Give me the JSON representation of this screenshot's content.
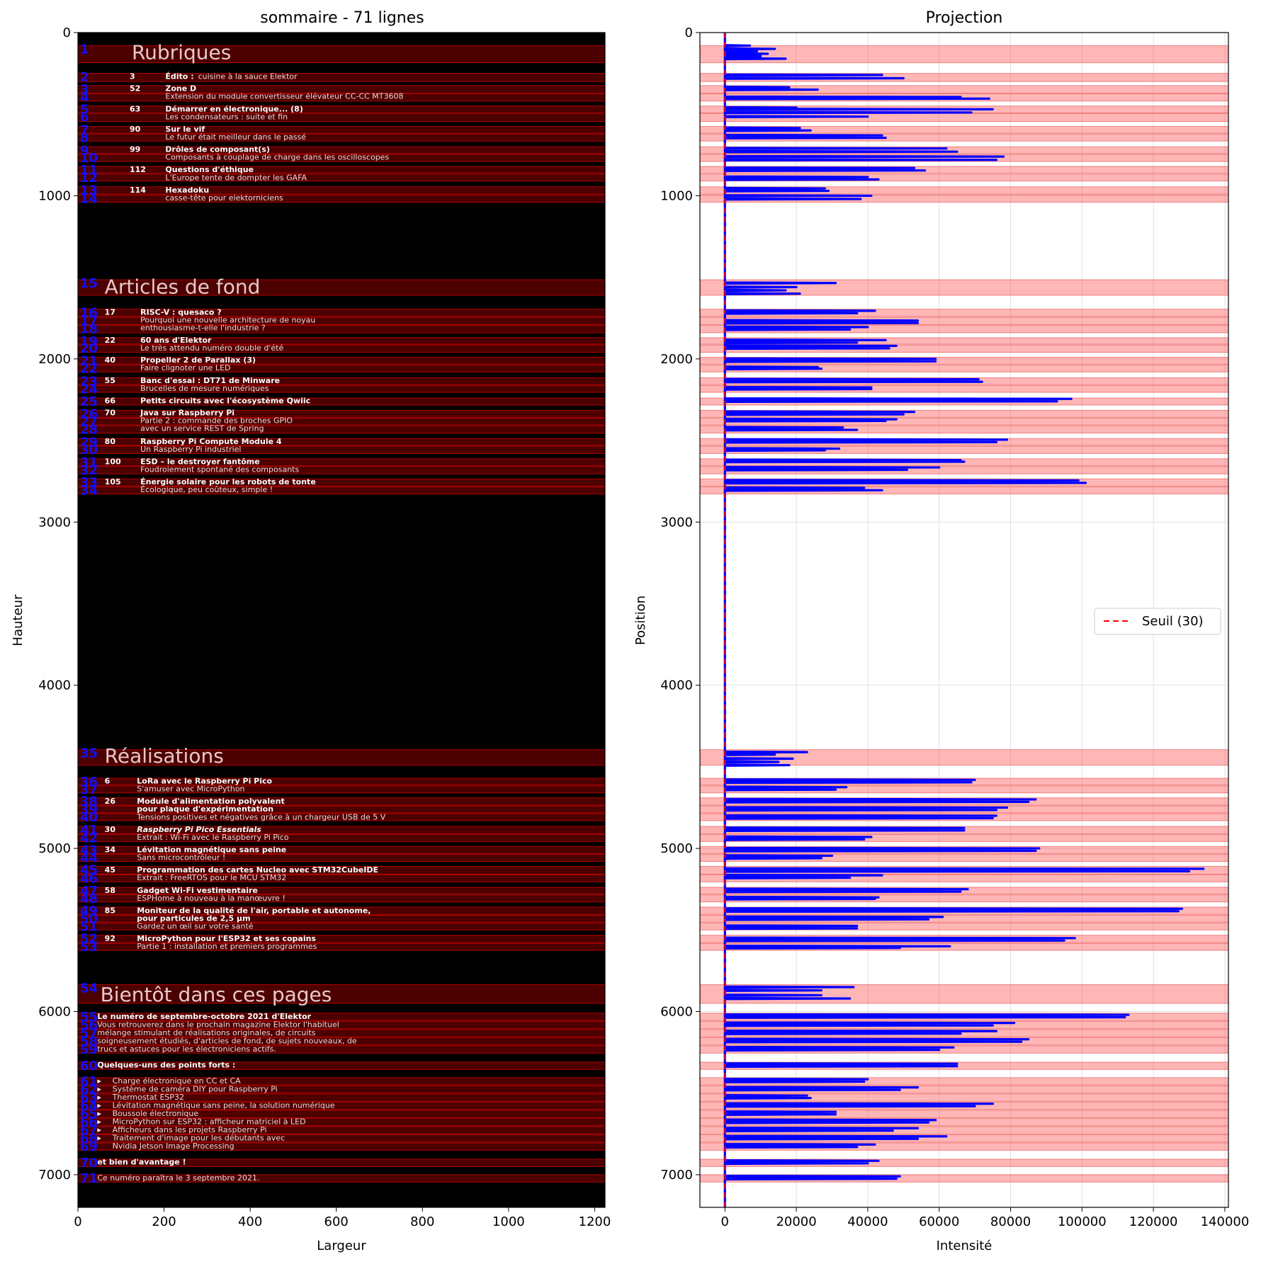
{
  "chart_data": [
    {
      "type": "image-with-line-segmentation",
      "title": "sommaire - 71 lignes",
      "xlabel": "Largeur",
      "ylabel": "Hauteur",
      "xlim": [
        0,
        1224
      ],
      "ylim": [
        7200,
        0
      ],
      "xticks": [
        0,
        200,
        400,
        600,
        800,
        1000,
        1200
      ],
      "yticks": [
        0,
        1000,
        2000,
        3000,
        4000,
        5000,
        6000,
        7000
      ],
      "n_lines": 71,
      "headings": [
        {
          "text": "Rubriques",
          "y": 128
        },
        {
          "text": "Articles de fond",
          "y": 1565
        },
        {
          "text": "Réalisations",
          "y": 4440
        },
        {
          "text": "Bientôt dans ces pages",
          "y": 5903
        }
      ],
      "entries": [
        {
          "page": "3",
          "title": "Édito :",
          "subtitle_inline": "cuisine à la sauce Elektor",
          "y": 272
        },
        {
          "page": "52",
          "title": "Zone D",
          "subtitle": "Extension du module convertisseur élévateur CC-CC MT3608",
          "y": 345
        },
        {
          "page": "63",
          "title": "Démarrer en électronique... (8)",
          "subtitle": "Les condensateurs : suite et fin",
          "y": 470
        },
        {
          "page": "90",
          "title": "Sur le vif",
          "subtitle": "Le futur était meilleur dans le passé",
          "y": 595
        },
        {
          "page": "99",
          "title": "Drôles de composant(s)",
          "subtitle": "Composants à couplage de charge dans les oscilloscopes",
          "y": 718
        },
        {
          "page": "112",
          "title": "Questions d'éthique",
          "subtitle": "L'Europe tente de dompter les GAFA",
          "y": 843
        },
        {
          "page": "114",
          "title": "Hexadoku",
          "subtitle": "casse-tête pour elektorniciens",
          "y": 968
        },
        {
          "page": "17",
          "title": "RISC-V : quesaco ?",
          "subtitle": "Pourquoi une nouvelle architecture de noyau",
          "subtitle2": "enthousiasme-t-elle l'industrie ?",
          "y": 1717
        },
        {
          "page": "22",
          "title": "60 ans d'Elektor",
          "subtitle": "Le très attendu numéro double d'été",
          "y": 1887
        },
        {
          "page": "40",
          "title": "Propeller 2 de Parallax (3)",
          "subtitle": "Faire clignoter une LED",
          "y": 2010
        },
        {
          "page": "55",
          "title": "Banc d'essai : DT71 de Minware",
          "subtitle": "Brucelles de mesure numériques",
          "y": 2135
        },
        {
          "page": "66",
          "title": "Petits circuits avec l'écosystème Qwiic",
          "y": 2260
        },
        {
          "page": "70",
          "title": "Java sur Raspberry Pi",
          "subtitle": "Partie 2 : commande des broches GPIO",
          "subtitle2": "avec un service REST de Spring",
          "y": 2333
        },
        {
          "page": "80",
          "title": "Raspberry Pi Compute Module 4",
          "subtitle": "Un Raspberry Pi industriel",
          "y": 2508
        },
        {
          "page": "100",
          "title": "ESD – le destroyer fantôme",
          "subtitle": "Foudroiement spontané des composants",
          "y": 2632
        },
        {
          "page": "105",
          "title": "Énergie solaire pour les robots de tonte",
          "subtitle": "Écologique, peu coûteux, simple !",
          "y": 2756
        },
        {
          "page": "6",
          "title": "LoRa avec le Raspberry Pi Pico",
          "subtitle": "S'amuser avec MicroPython",
          "y": 4590
        },
        {
          "page": "26",
          "title": "Module d'alimentation polyvalent",
          "title2": "pour plaque d'expérimentation",
          "subtitle": "Tensions positives et négatives grâce à un chargeur USB de 5 V",
          "y": 4714
        },
        {
          "page": "30",
          "title": "Raspberry Pi Pico Essentials",
          "italic": true,
          "subtitle": "Extrait : Wi-Fi avec le Raspberry Pi Pico",
          "y": 4887
        },
        {
          "page": "34",
          "title": "Lévitation magnétique sans peine",
          "subtitle": "Sans microcontrôleur !",
          "y": 5010
        },
        {
          "page": "45",
          "title": "Programmation des cartes Nucleo avec STM32CubeIDE",
          "subtitle": "Extrait : FreeRTOS pour le MCU STM32",
          "y": 5135
        },
        {
          "page": "58",
          "title": "Gadget Wi-Fi vestimentaire",
          "subtitle": "ESPHome à nouveau à la manœuvre !",
          "y": 5260
        },
        {
          "page": "85",
          "title": "Moniteur de la qualité de l'air, portable et autonome,",
          "title2": "pour particules de 2,5 µm",
          "subtitle": "Gardez un œil sur votre santé",
          "y": 5383
        },
        {
          "page": "92",
          "title": "MicroPython pour l'ESP32 et ses copains",
          "subtitle": "Partie 1 : installation et premiers programmes",
          "y": 5555
        }
      ],
      "preview": {
        "headline": {
          "text": "Le numéro de septembre-octobre 2021 d'Elektor",
          "y": 6032
        },
        "paragraph": [
          {
            "text": "Vous retrouverez dans le prochain magazine Elektor l'habituel",
            "y": 6082
          },
          {
            "text": "mélange stimulant de réalisations originales, de circuits",
            "y": 6132
          },
          {
            "text": "soigneusement étudiés, d'articles de fond, de sujets nouveaux, de",
            "y": 6182
          },
          {
            "text": "trucs et astuces pour les électroniciens actifs.",
            "y": 6232
          }
        ],
        "points_title": {
          "text": "Quelques-uns des points forts :",
          "y": 6330
        },
        "bullets": [
          {
            "text": "Charge électronique en CC et CA",
            "y": 6427
          },
          {
            "text": "Système de caméra DIY pour Raspberry Pi",
            "y": 6477
          },
          {
            "text": "Thermostat ESP32",
            "y": 6527
          },
          {
            "text": "Lévitation magnétique sans peine, la solution numérique",
            "y": 6577
          },
          {
            "text": "Boussole électronique",
            "y": 6627
          },
          {
            "text": "MicroPython sur ESP32 : afficheur matriciel à LED",
            "y": 6677
          },
          {
            "text": "Afficheurs dans les projets Raspberry Pi",
            "y": 6727
          },
          {
            "text": "Traitement d'image pour les débutants avec",
            "y": 6777
          },
          {
            "text": "Nvidia Jetson Image Processing",
            "y": 6827,
            "no_bullet": true
          }
        ],
        "more": {
          "text": "et bien d'avantage !",
          "y": 6925
        },
        "date": {
          "text": "Ce numéro paraîtra le 3 septembre 2021.",
          "y": 7022
        }
      },
      "line_bands": [
        [
          80,
          185
        ],
        [
          250,
          300
        ],
        [
          325,
          372
        ],
        [
          375,
          420
        ],
        [
          450,
          493
        ],
        [
          495,
          545
        ],
        [
          575,
          617
        ],
        [
          622,
          665
        ],
        [
          700,
          742
        ],
        [
          747,
          790
        ],
        [
          820,
          862
        ],
        [
          868,
          910
        ],
        [
          945,
          990
        ],
        [
          995,
          1040
        ],
        [
          1515,
          1610
        ],
        [
          1695,
          1740
        ],
        [
          1745,
          1790
        ],
        [
          1795,
          1840
        ],
        [
          1870,
          1910
        ],
        [
          1915,
          1960
        ],
        [
          1990,
          2032
        ],
        [
          2037,
          2080
        ],
        [
          2115,
          2158
        ],
        [
          2163,
          2205
        ],
        [
          2240,
          2283
        ],
        [
          2315,
          2358
        ],
        [
          2363,
          2405
        ],
        [
          2410,
          2455
        ],
        [
          2488,
          2530
        ],
        [
          2535,
          2580
        ],
        [
          2612,
          2655
        ],
        [
          2660,
          2705
        ],
        [
          2735,
          2780
        ],
        [
          2785,
          2828
        ],
        [
          4395,
          4490
        ],
        [
          4570,
          4612
        ],
        [
          4617,
          4660
        ],
        [
          4690,
          4735
        ],
        [
          4740,
          4782
        ],
        [
          4787,
          4830
        ],
        [
          4865,
          4910
        ],
        [
          4915,
          4958
        ],
        [
          4988,
          5032
        ],
        [
          5037,
          5080
        ],
        [
          5110,
          5158
        ],
        [
          5162,
          5205
        ],
        [
          5238,
          5280
        ],
        [
          5285,
          5328
        ],
        [
          5360,
          5405
        ],
        [
          5410,
          5452
        ],
        [
          5457,
          5500
        ],
        [
          5532,
          5578
        ],
        [
          5582,
          5625
        ],
        [
          5835,
          5950
        ],
        [
          6010,
          6055
        ],
        [
          6060,
          6105
        ],
        [
          6110,
          6155
        ],
        [
          6160,
          6205
        ],
        [
          6210,
          6255
        ],
        [
          6310,
          6355
        ],
        [
          6405,
          6450
        ],
        [
          6455,
          6500
        ],
        [
          6505,
          6550
        ],
        [
          6555,
          6600
        ],
        [
          6605,
          6650
        ],
        [
          6655,
          6700
        ],
        [
          6705,
          6750
        ],
        [
          6755,
          6800
        ],
        [
          6805,
          6850
        ],
        [
          6905,
          6950
        ],
        [
          7000,
          7045
        ]
      ]
    },
    {
      "type": "line",
      "title": "Projection",
      "xlabel": "Intensité",
      "ylabel": "Position",
      "xlim": [
        -7000,
        141000
      ],
      "ylim": [
        7200,
        0
      ],
      "xticks": [
        0,
        20000,
        40000,
        60000,
        80000,
        100000,
        120000,
        140000
      ],
      "yticks": [
        0,
        1000,
        2000,
        3000,
        4000,
        5000,
        6000,
        7000
      ],
      "grid": true,
      "threshold": 30,
      "legend": {
        "label": "Seuil (30)",
        "placement": "center-right"
      },
      "profile_peaks": [
        [
          80,
          7000
        ],
        [
          100,
          14000
        ],
        [
          115,
          9000
        ],
        [
          130,
          12000
        ],
        [
          145,
          10000
        ],
        [
          160,
          17000
        ],
        [
          260,
          44000
        ],
        [
          280,
          50000
        ],
        [
          335,
          18000
        ],
        [
          350,
          26000
        ],
        [
          395,
          66000
        ],
        [
          405,
          74000
        ],
        [
          460,
          20000
        ],
        [
          470,
          75000
        ],
        [
          490,
          69000
        ],
        [
          515,
          40000
        ],
        [
          585,
          21000
        ],
        [
          600,
          24000
        ],
        [
          630,
          44000
        ],
        [
          645,
          45000
        ],
        [
          710,
          62000
        ],
        [
          730,
          65000
        ],
        [
          760,
          78000
        ],
        [
          780,
          76000
        ],
        [
          830,
          53000
        ],
        [
          845,
          56000
        ],
        [
          885,
          40000
        ],
        [
          900,
          43000
        ],
        [
          955,
          28000
        ],
        [
          970,
          29000
        ],
        [
          1000,
          41000
        ],
        [
          1020,
          38000
        ],
        [
          1535,
          31000
        ],
        [
          1560,
          20000
        ],
        [
          1580,
          17000
        ],
        [
          1600,
          21000
        ],
        [
          1705,
          42000
        ],
        [
          1720,
          37000
        ],
        [
          1765,
          54000
        ],
        [
          1780,
          54000
        ],
        [
          1805,
          40000
        ],
        [
          1820,
          35000
        ],
        [
          1885,
          45000
        ],
        [
          1900,
          37000
        ],
        [
          1920,
          48000
        ],
        [
          1935,
          46000
        ],
        [
          2000,
          59000
        ],
        [
          2015,
          59000
        ],
        [
          2050,
          26000
        ],
        [
          2060,
          27000
        ],
        [
          2125,
          71000
        ],
        [
          2140,
          72000
        ],
        [
          2175,
          41000
        ],
        [
          2185,
          41000
        ],
        [
          2245,
          97000
        ],
        [
          2260,
          93000
        ],
        [
          2325,
          53000
        ],
        [
          2340,
          50000
        ],
        [
          2370,
          48000
        ],
        [
          2380,
          45000
        ],
        [
          2420,
          33000
        ],
        [
          2435,
          37000
        ],
        [
          2495,
          79000
        ],
        [
          2510,
          76000
        ],
        [
          2550,
          32000
        ],
        [
          2560,
          28000
        ],
        [
          2620,
          66000
        ],
        [
          2630,
          67000
        ],
        [
          2665,
          60000
        ],
        [
          2680,
          51000
        ],
        [
          2745,
          99000
        ],
        [
          2760,
          101000
        ],
        [
          2790,
          39000
        ],
        [
          2805,
          44000
        ],
        [
          4410,
          23000
        ],
        [
          4425,
          14000
        ],
        [
          4450,
          19000
        ],
        [
          4470,
          15000
        ],
        [
          4490,
          18000
        ],
        [
          4580,
          70000
        ],
        [
          4595,
          69000
        ],
        [
          4625,
          34000
        ],
        [
          4640,
          31000
        ],
        [
          4700,
          87000
        ],
        [
          4715,
          85000
        ],
        [
          4750,
          79000
        ],
        [
          4765,
          76000
        ],
        [
          4800,
          76000
        ],
        [
          4815,
          75000
        ],
        [
          4875,
          67000
        ],
        [
          4890,
          67000
        ],
        [
          4930,
          41000
        ],
        [
          4945,
          39000
        ],
        [
          5000,
          88000
        ],
        [
          5015,
          87000
        ],
        [
          5045,
          30000
        ],
        [
          5060,
          27000
        ],
        [
          5125,
          134000
        ],
        [
          5140,
          130000
        ],
        [
          5165,
          44000
        ],
        [
          5180,
          35000
        ],
        [
          5250,
          68000
        ],
        [
          5265,
          66000
        ],
        [
          5300,
          43000
        ],
        [
          5310,
          42000
        ],
        [
          5370,
          128000
        ],
        [
          5385,
          127000
        ],
        [
          5420,
          61000
        ],
        [
          5435,
          57000
        ],
        [
          5475,
          37000
        ],
        [
          5490,
          37000
        ],
        [
          5550,
          98000
        ],
        [
          5565,
          95000
        ],
        [
          5600,
          63000
        ],
        [
          5610,
          49000
        ],
        [
          5850,
          36000
        ],
        [
          5870,
          27000
        ],
        [
          5900,
          27000
        ],
        [
          5920,
          35000
        ],
        [
          6020,
          113000
        ],
        [
          6035,
          112000
        ],
        [
          6070,
          81000
        ],
        [
          6085,
          75000
        ],
        [
          6120,
          76000
        ],
        [
          6135,
          66000
        ],
        [
          6170,
          85000
        ],
        [
          6185,
          83000
        ],
        [
          6220,
          64000
        ],
        [
          6235,
          60000
        ],
        [
          6320,
          65000
        ],
        [
          6335,
          65000
        ],
        [
          6415,
          40000
        ],
        [
          6430,
          39000
        ],
        [
          6465,
          54000
        ],
        [
          6480,
          49000
        ],
        [
          6515,
          23000
        ],
        [
          6530,
          24000
        ],
        [
          6565,
          75000
        ],
        [
          6580,
          70000
        ],
        [
          6615,
          31000
        ],
        [
          6630,
          31000
        ],
        [
          6665,
          59000
        ],
        [
          6680,
          57000
        ],
        [
          6715,
          54000
        ],
        [
          6730,
          47000
        ],
        [
          6765,
          62000
        ],
        [
          6780,
          54000
        ],
        [
          6815,
          42000
        ],
        [
          6830,
          37000
        ],
        [
          6915,
          43000
        ],
        [
          6930,
          40000
        ],
        [
          7010,
          49000
        ],
        [
          7025,
          48000
        ]
      ]
    }
  ]
}
